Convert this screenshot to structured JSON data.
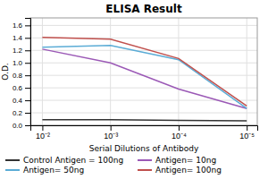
{
  "chart_data": {
    "type": "line",
    "title": "ELISA Result",
    "xlabel": "Serial Dilutions of Antibody",
    "ylabel": "O.D.",
    "x": [
      0.01,
      0.001,
      0.0001,
      1e-05
    ],
    "xlim": [
      0.015,
      7e-06
    ],
    "xticks": [
      {
        "value": 0.01,
        "label": "10⁻²"
      },
      {
        "value": 0.001,
        "label": "10⁻³"
      },
      {
        "value": 0.0001,
        "label": "10⁻⁴"
      },
      {
        "value": 1e-05,
        "label": "10⁻⁵"
      }
    ],
    "ylim": [
      0,
      1.72
    ],
    "yticks": [
      {
        "value": 0,
        "label": "0.0"
      },
      0.2,
      0.4,
      0.6,
      0.8,
      {
        "value": 1.0,
        "label": "1.0"
      },
      1.2,
      1.4,
      1.6
    ],
    "log": "x",
    "grid": true,
    "legend": "bottom",
    "series": [
      {
        "name": "Control Antigen = 100ng",
        "color": "#333333",
        "values": [
          0.09,
          0.09,
          0.08,
          0.07
        ]
      },
      {
        "name": "Antigen= 10ng",
        "color": "#9b59b6",
        "values": [
          1.22,
          1.0,
          0.58,
          0.27
        ]
      },
      {
        "name": "Antigen= 50ng",
        "color": "#5bacd6",
        "values": [
          1.25,
          1.28,
          1.05,
          0.27
        ]
      },
      {
        "name": "Antigen= 100ng",
        "color": "#c0504d",
        "values": [
          1.41,
          1.38,
          1.07,
          0.31
        ]
      }
    ]
  }
}
